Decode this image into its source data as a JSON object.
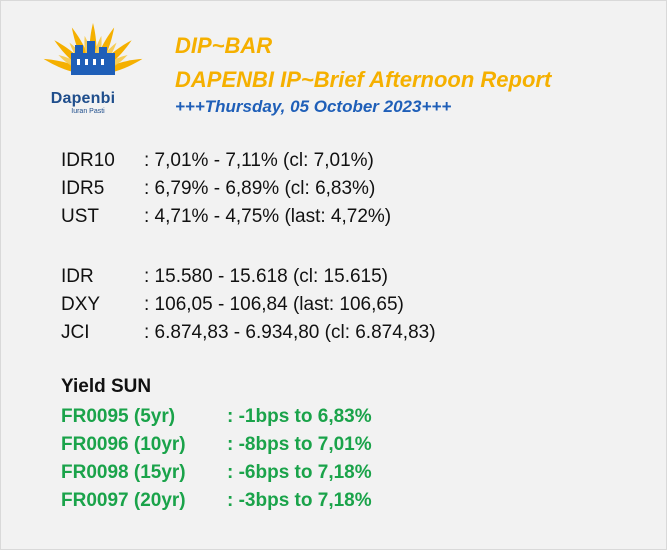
{
  "header": {
    "logo_name": "Dapenbi",
    "logo_tagline": "Iuran Pasti",
    "title": "DIP~BAR",
    "subtitle": "DAPENBI IP~Brief Afternoon Report",
    "date_line": "+++Thursday, 05 October 2023+++"
  },
  "rates": [
    {
      "label": "IDR10",
      "value": ": 7,01% - 7,11% (cl: 7,01%)"
    },
    {
      "label": "IDR5",
      "value": ": 6,79% - 6,89% (cl: 6,83%)"
    },
    {
      "label": "UST",
      "value": ": 4,71% - 4,75% (last: 4,72%)"
    }
  ],
  "markets": [
    {
      "label": "IDR",
      "value": ": 15.580 - 15.618 (cl: 15.615)"
    },
    {
      "label": "DXY",
      "value": ": 106,05 - 106,84 (last: 106,65)"
    },
    {
      "label": "JCI",
      "value": ": 6.874,83 - 6.934,80 (cl: 6.874,83)"
    }
  ],
  "yield_sun": {
    "heading": "Yield SUN",
    "items": [
      {
        "label": "FR0095 (5yr)",
        "value": ": -1bps to 6,83%"
      },
      {
        "label": "FR0096 (10yr)",
        "value": ": -8bps to 7,01%"
      },
      {
        "label": "FR0098 (15yr)",
        "value": ": -6bps to 7,18%"
      },
      {
        "label": "FR0097 (20yr)",
        "value": ": -3bps to 7,18%"
      }
    ]
  },
  "colors": {
    "title": "#f5b000",
    "date_line": "#1f5fb8",
    "yield_items": "#1aa34a",
    "logo_text": "#1f4e8c"
  }
}
